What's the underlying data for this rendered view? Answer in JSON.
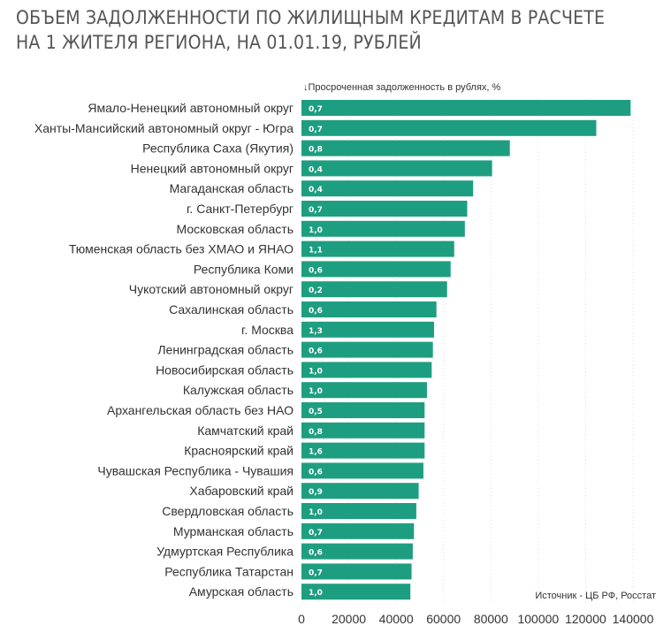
{
  "title": {
    "line1": "ОБЪЕМ ЗАДОЛЖЕННОСТИ ПО ЖИЛИЩНЫМ КРЕДИТАМ В РАСЧЕТЕ",
    "line2": "НА 1 ЖИТЕЛЯ РЕГИОНА, НА 01.01.19, РУБЛЕЙ"
  },
  "legend_label": "↓Просроченная задолженность в рублях, %",
  "source": "Источник  - ЦБ РФ, Росстат",
  "colors": {
    "bar": "#1e9e80",
    "text": "#333333",
    "title": "#555555"
  },
  "chart_data": {
    "type": "bar",
    "orientation": "horizontal",
    "categories": [
      "Ямало-Ненецкий автономный округ",
      "Ханты-Мансийский автономный округ - Югра",
      "Республика Саха (Якутия)",
      "Ненецкий автономный округ",
      "Магаданская область",
      "г. Санкт-Петербург",
      "Московская область",
      "Тюменская область без ХМАО и ЯНАО",
      "Республика Коми",
      "Чукотский автономный округ",
      "Сахалинская область",
      "г. Москва",
      "Ленинградская область",
      "Новосибирская область",
      "Калужская область",
      "Архангельская область без НАО",
      "Камчатский край",
      "Красноярский край",
      "Чувашская Республика - Чувашия",
      "Хабаровский край",
      "Свердловская область",
      "Мурманская область",
      "Удмуртская Республика",
      "Республика Татарстан",
      "Амурская область"
    ],
    "values": [
      139000,
      124500,
      88000,
      80500,
      72500,
      70000,
      69000,
      64500,
      63000,
      61500,
      57000,
      56000,
      55500,
      55000,
      53000,
      52000,
      52000,
      52000,
      51500,
      49500,
      48500,
      47500,
      47000,
      46500,
      46000
    ],
    "bar_labels": [
      "0,7",
      "0,7",
      "0,8",
      "0,4",
      "0,4",
      "0,7",
      "1,0",
      "1,1",
      "0,6",
      "0,2",
      "0,6",
      "1,3",
      "0,6",
      "1,0",
      "1,0",
      "0,5",
      "0,8",
      "1,6",
      "0,6",
      "0,9",
      "1,0",
      "0,7",
      "0,6",
      "0,7",
      "1,0"
    ],
    "xlim": [
      0,
      140000
    ],
    "xticks": [
      "0",
      "20000",
      "40000",
      "60000",
      "80000",
      "100000",
      "120000",
      "140000"
    ],
    "grid": true
  }
}
